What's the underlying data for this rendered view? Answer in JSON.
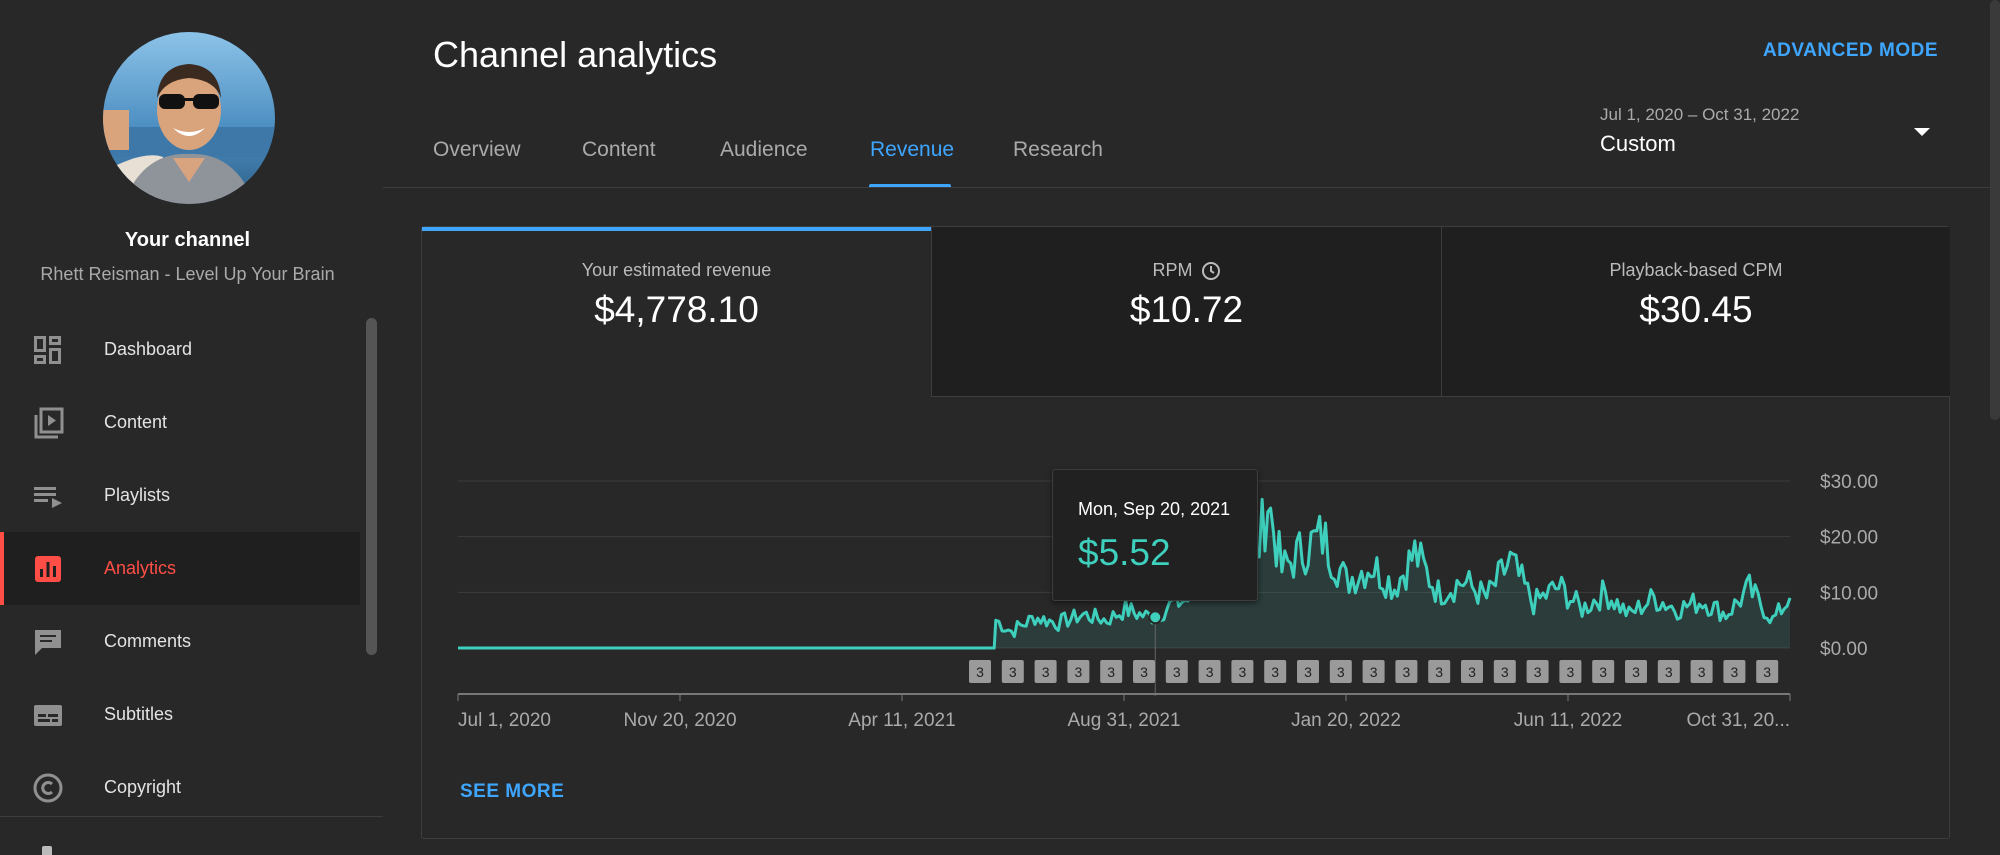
{
  "sidebar": {
    "channel_title": "Your channel",
    "channel_name": "Rhett Reisman - Level Up Your Brain",
    "items": [
      {
        "label": "Dashboard",
        "icon": "dashboard-icon"
      },
      {
        "label": "Content",
        "icon": "content-icon"
      },
      {
        "label": "Playlists",
        "icon": "playlists-icon"
      },
      {
        "label": "Analytics",
        "icon": "analytics-icon",
        "active": true
      },
      {
        "label": "Comments",
        "icon": "comments-icon"
      },
      {
        "label": "Subtitles",
        "icon": "subtitles-icon"
      },
      {
        "label": "Copyright",
        "icon": "copyright-icon"
      }
    ]
  },
  "header": {
    "title": "Channel analytics",
    "advanced_mode": "ADVANCED MODE",
    "tabs": [
      {
        "label": "Overview"
      },
      {
        "label": "Content"
      },
      {
        "label": "Audience"
      },
      {
        "label": "Revenue",
        "active": true
      },
      {
        "label": "Research"
      }
    ],
    "date_range": "Jul 1, 2020 – Oct 31, 2022",
    "date_preset": "Custom"
  },
  "metrics": [
    {
      "label": "Your estimated revenue",
      "value": "$4,778.10",
      "active": true
    },
    {
      "label": "RPM",
      "value": "$10.72",
      "icon": "clock-icon"
    },
    {
      "label": "Playback-based CPM",
      "value": "$30.45"
    }
  ],
  "tooltip": {
    "date": "Mon, Sep 20, 2021",
    "value": "$5.52"
  },
  "see_more": "SEE MORE",
  "colors": {
    "accent": "#3ea6ff",
    "series": "#3ecfbd",
    "active_nav": "#ff4e45"
  },
  "chart_data": {
    "type": "area",
    "series": [
      {
        "values_note": "daily estimated revenue"
      }
    ],
    "x_ticks": [
      "Jul 1, 2020",
      "Nov 20, 2020",
      "Apr 11, 2021",
      "Aug 31, 2021",
      "Jan 20, 2022",
      "Jun 11, 2022",
      "Oct 31, 20..."
    ],
    "y_ticks": [
      "$30.00",
      "$20.00",
      "$10.00",
      "$0.00"
    ],
    "ylim": [
      0,
      30
    ],
    "x_start": "2020-07-01",
    "x_end": "2022-10-31",
    "grid": true,
    "marker_label": "3",
    "marker_count": 25,
    "points": [
      [
        "2020-07-01",
        0
      ],
      [
        "2021-06-09",
        0
      ],
      [
        "2021-06-10",
        5
      ],
      [
        "2021-06-20",
        3
      ],
      [
        "2021-07-05",
        5.5
      ],
      [
        "2021-07-20",
        4.5
      ],
      [
        "2021-08-05",
        6
      ],
      [
        "2021-08-20",
        5
      ],
      [
        "2021-09-01",
        7
      ],
      [
        "2021-09-10",
        6
      ],
      [
        "2021-09-20",
        5.52
      ],
      [
        "2021-10-01",
        8
      ],
      [
        "2021-10-15",
        9
      ],
      [
        "2021-10-22",
        21
      ],
      [
        "2021-11-01",
        15
      ],
      [
        "2021-11-10",
        13
      ],
      [
        "2021-11-20",
        11
      ],
      [
        "2021-12-01",
        26.5
      ],
      [
        "2021-12-10",
        14
      ],
      [
        "2021-12-25",
        18
      ],
      [
        "2022-01-05",
        20
      ],
      [
        "2022-01-20",
        12
      ],
      [
        "2022-02-05",
        15
      ],
      [
        "2022-02-20",
        11
      ],
      [
        "2022-03-05",
        17
      ],
      [
        "2022-03-20",
        10
      ],
      [
        "2022-04-05",
        12
      ],
      [
        "2022-04-20",
        9
      ],
      [
        "2022-05-05",
        15.5
      ],
      [
        "2022-05-20",
        8
      ],
      [
        "2022-06-05",
        11
      ],
      [
        "2022-06-20",
        7
      ],
      [
        "2022-07-05",
        10
      ],
      [
        "2022-07-20",
        6
      ],
      [
        "2022-08-05",
        9
      ],
      [
        "2022-08-20",
        7
      ],
      [
        "2022-09-05",
        8.5
      ],
      [
        "2022-09-20",
        6
      ],
      [
        "2022-10-05",
        10.5
      ],
      [
        "2022-10-20",
        5
      ],
      [
        "2022-10-31",
        9
      ]
    ]
  }
}
